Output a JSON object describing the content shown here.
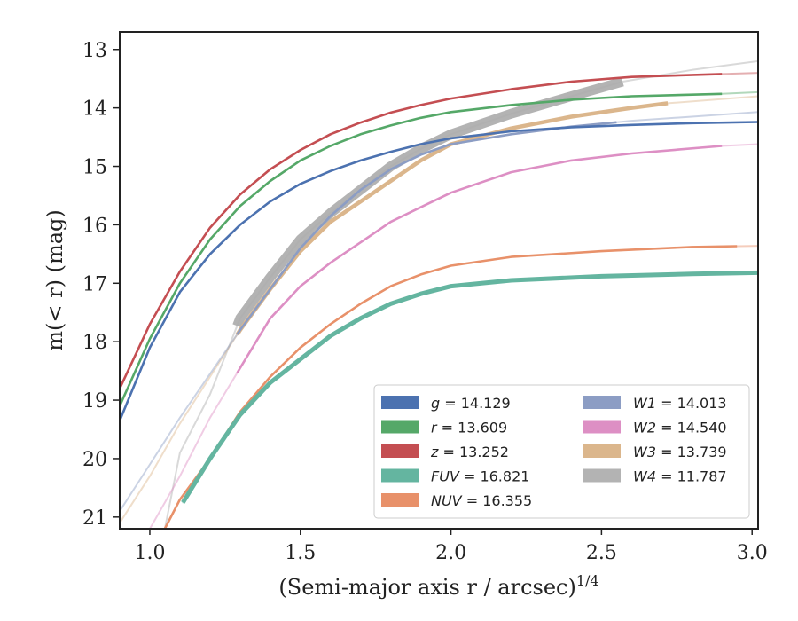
{
  "chart_data": {
    "type": "line",
    "xlabel": "(Semi-major axis r / arcsec)",
    "xlabel_sup": "1/4",
    "ylabel": "m(< r) (mag)",
    "xlim": [
      0.9,
      3.02
    ],
    "ylim": [
      21.2,
      12.7
    ],
    "y_inverted": true,
    "grid": false,
    "legend_placement": "lower-right",
    "xticks": [
      "1.0",
      "1.5",
      "2.0",
      "2.5",
      "3.0"
    ],
    "yticks": [
      "13",
      "14",
      "15",
      "16",
      "17",
      "18",
      "19",
      "20",
      "21"
    ],
    "series": [
      {
        "name": "g",
        "label_value": "14.129",
        "color": "#4c72b0",
        "x_start": 0.9,
        "x_end": 3.02,
        "measured_end": 3.02,
        "thickness": "normal",
        "points": [
          [
            0.9,
            19.35
          ],
          [
            1.0,
            18.1
          ],
          [
            1.1,
            17.15
          ],
          [
            1.2,
            16.5
          ],
          [
            1.3,
            16.0
          ],
          [
            1.4,
            15.6
          ],
          [
            1.5,
            15.3
          ],
          [
            1.6,
            15.08
          ],
          [
            1.7,
            14.9
          ],
          [
            1.8,
            14.75
          ],
          [
            1.9,
            14.62
          ],
          [
            2.0,
            14.52
          ],
          [
            2.2,
            14.4
          ],
          [
            2.4,
            14.33
          ],
          [
            2.6,
            14.29
          ],
          [
            2.8,
            14.26
          ],
          [
            3.02,
            14.24
          ]
        ]
      },
      {
        "name": "r",
        "label_value": "13.609",
        "color": "#55a868",
        "x_start": 0.9,
        "x_end": 3.02,
        "measured_end": 2.9,
        "thickness": "normal",
        "points": [
          [
            0.9,
            19.1
          ],
          [
            1.0,
            17.95
          ],
          [
            1.1,
            17.0
          ],
          [
            1.2,
            16.25
          ],
          [
            1.3,
            15.68
          ],
          [
            1.4,
            15.25
          ],
          [
            1.5,
            14.9
          ],
          [
            1.6,
            14.65
          ],
          [
            1.7,
            14.45
          ],
          [
            1.8,
            14.3
          ],
          [
            1.9,
            14.17
          ],
          [
            2.0,
            14.07
          ],
          [
            2.2,
            13.95
          ],
          [
            2.4,
            13.86
          ],
          [
            2.6,
            13.8
          ],
          [
            2.9,
            13.76
          ],
          [
            3.02,
            13.73
          ]
        ]
      },
      {
        "name": "z",
        "label_value": "13.252",
        "color": "#c44e52",
        "x_start": 0.9,
        "x_end": 3.02,
        "measured_end": 2.9,
        "thickness": "normal",
        "points": [
          [
            0.9,
            18.8
          ],
          [
            1.0,
            17.7
          ],
          [
            1.1,
            16.8
          ],
          [
            1.2,
            16.05
          ],
          [
            1.3,
            15.48
          ],
          [
            1.4,
            15.05
          ],
          [
            1.5,
            14.72
          ],
          [
            1.6,
            14.45
          ],
          [
            1.7,
            14.25
          ],
          [
            1.8,
            14.08
          ],
          [
            1.9,
            13.95
          ],
          [
            2.0,
            13.84
          ],
          [
            2.2,
            13.68
          ],
          [
            2.4,
            13.55
          ],
          [
            2.6,
            13.47
          ],
          [
            2.9,
            13.42
          ],
          [
            3.02,
            13.4
          ]
        ]
      },
      {
        "name": "FUV",
        "label_value": "16.821",
        "color": "#64b5a0",
        "x_start": 1.11,
        "x_end": 3.02,
        "measured_end": 3.02,
        "thickness": "thick",
        "points": [
          [
            1.11,
            20.75
          ],
          [
            1.2,
            20.0
          ],
          [
            1.3,
            19.25
          ],
          [
            1.4,
            18.7
          ],
          [
            1.5,
            18.3
          ],
          [
            1.6,
            17.9
          ],
          [
            1.7,
            17.6
          ],
          [
            1.8,
            17.35
          ],
          [
            1.9,
            17.18
          ],
          [
            2.0,
            17.05
          ],
          [
            2.2,
            16.95
          ],
          [
            2.5,
            16.88
          ],
          [
            2.8,
            16.84
          ],
          [
            3.02,
            16.82
          ]
        ]
      },
      {
        "name": "NUV",
        "label_value": "16.355",
        "color": "#e8916a",
        "x_start": 1.05,
        "x_end": 3.02,
        "measured_end": 2.95,
        "thickness": "normal",
        "points": [
          [
            1.05,
            21.2
          ],
          [
            1.1,
            20.7
          ],
          [
            1.2,
            20.0
          ],
          [
            1.3,
            19.2
          ],
          [
            1.4,
            18.6
          ],
          [
            1.5,
            18.1
          ],
          [
            1.6,
            17.7
          ],
          [
            1.7,
            17.35
          ],
          [
            1.8,
            17.05
          ],
          [
            1.9,
            16.85
          ],
          [
            2.0,
            16.7
          ],
          [
            2.2,
            16.55
          ],
          [
            2.5,
            16.45
          ],
          [
            2.8,
            16.38
          ],
          [
            3.02,
            16.36
          ]
        ]
      },
      {
        "name": "W1",
        "label_value": "14.013",
        "color": "#8c9dc4",
        "x_start": 0.9,
        "x_end": 3.02,
        "measured_end": 2.55,
        "thickness": "normal",
        "points": [
          [
            0.9,
            20.9
          ],
          [
            1.0,
            20.1
          ],
          [
            1.1,
            19.3
          ],
          [
            1.2,
            18.55
          ],
          [
            1.3,
            17.8
          ],
          [
            1.4,
            17.1
          ],
          [
            1.5,
            16.4
          ],
          [
            1.6,
            15.85
          ],
          [
            1.7,
            15.4
          ],
          [
            1.8,
            15.05
          ],
          [
            1.9,
            14.8
          ],
          [
            2.0,
            14.62
          ],
          [
            2.2,
            14.45
          ],
          [
            2.4,
            14.32
          ],
          [
            2.6,
            14.22
          ],
          [
            2.8,
            14.15
          ],
          [
            3.02,
            14.07
          ]
        ]
      },
      {
        "name": "W2",
        "label_value": "14.540",
        "color": "#dd8fc4",
        "x_start": 0.9,
        "x_end": 3.02,
        "measured_end": 2.9,
        "thickness": "normal",
        "points": [
          [
            1.0,
            21.2
          ],
          [
            1.1,
            20.3
          ],
          [
            1.2,
            19.3
          ],
          [
            1.3,
            18.45
          ],
          [
            1.4,
            17.6
          ],
          [
            1.5,
            17.05
          ],
          [
            1.6,
            16.65
          ],
          [
            1.7,
            16.3
          ],
          [
            1.8,
            15.95
          ],
          [
            1.9,
            15.7
          ],
          [
            2.0,
            15.45
          ],
          [
            2.2,
            15.1
          ],
          [
            2.4,
            14.9
          ],
          [
            2.6,
            14.78
          ],
          [
            2.9,
            14.65
          ],
          [
            3.02,
            14.62
          ]
        ]
      },
      {
        "name": "W3",
        "label_value": "13.739",
        "color": "#dbb68c",
        "x_start": 0.9,
        "x_end": 3.02,
        "measured_end": 2.72,
        "thickness": "medium",
        "points": [
          [
            0.9,
            21.1
          ],
          [
            1.0,
            20.3
          ],
          [
            1.1,
            19.4
          ],
          [
            1.2,
            18.6
          ],
          [
            1.3,
            17.8
          ],
          [
            1.4,
            17.1
          ],
          [
            1.5,
            16.45
          ],
          [
            1.6,
            15.95
          ],
          [
            1.7,
            15.6
          ],
          [
            1.8,
            15.25
          ],
          [
            1.9,
            14.9
          ],
          [
            2.0,
            14.62
          ],
          [
            2.2,
            14.35
          ],
          [
            2.4,
            14.15
          ],
          [
            2.6,
            14.0
          ],
          [
            2.72,
            13.92
          ],
          [
            3.02,
            13.8
          ]
        ]
      },
      {
        "name": "W4",
        "label_value": "11.787",
        "color": "#ababab",
        "x_start": 1.05,
        "x_end": 3.02,
        "measured_end": 2.57,
        "thickness": "band",
        "points": [
          [
            1.05,
            21.2
          ],
          [
            1.1,
            19.9
          ],
          [
            1.2,
            18.9
          ],
          [
            1.3,
            17.6
          ],
          [
            1.4,
            16.9
          ],
          [
            1.5,
            16.25
          ],
          [
            1.6,
            15.8
          ],
          [
            1.7,
            15.4
          ],
          [
            1.8,
            15.0
          ],
          [
            1.9,
            14.7
          ],
          [
            2.0,
            14.45
          ],
          [
            2.2,
            14.1
          ],
          [
            2.4,
            13.8
          ],
          [
            2.57,
            13.55
          ],
          [
            2.8,
            13.35
          ],
          [
            3.02,
            13.2
          ]
        ]
      }
    ]
  },
  "legend": {
    "left_column": [
      "g",
      "r",
      "z",
      "FUV",
      "NUV"
    ],
    "right_column": [
      "W1",
      "W2",
      "W3",
      "W4"
    ],
    "separator": " = "
  }
}
